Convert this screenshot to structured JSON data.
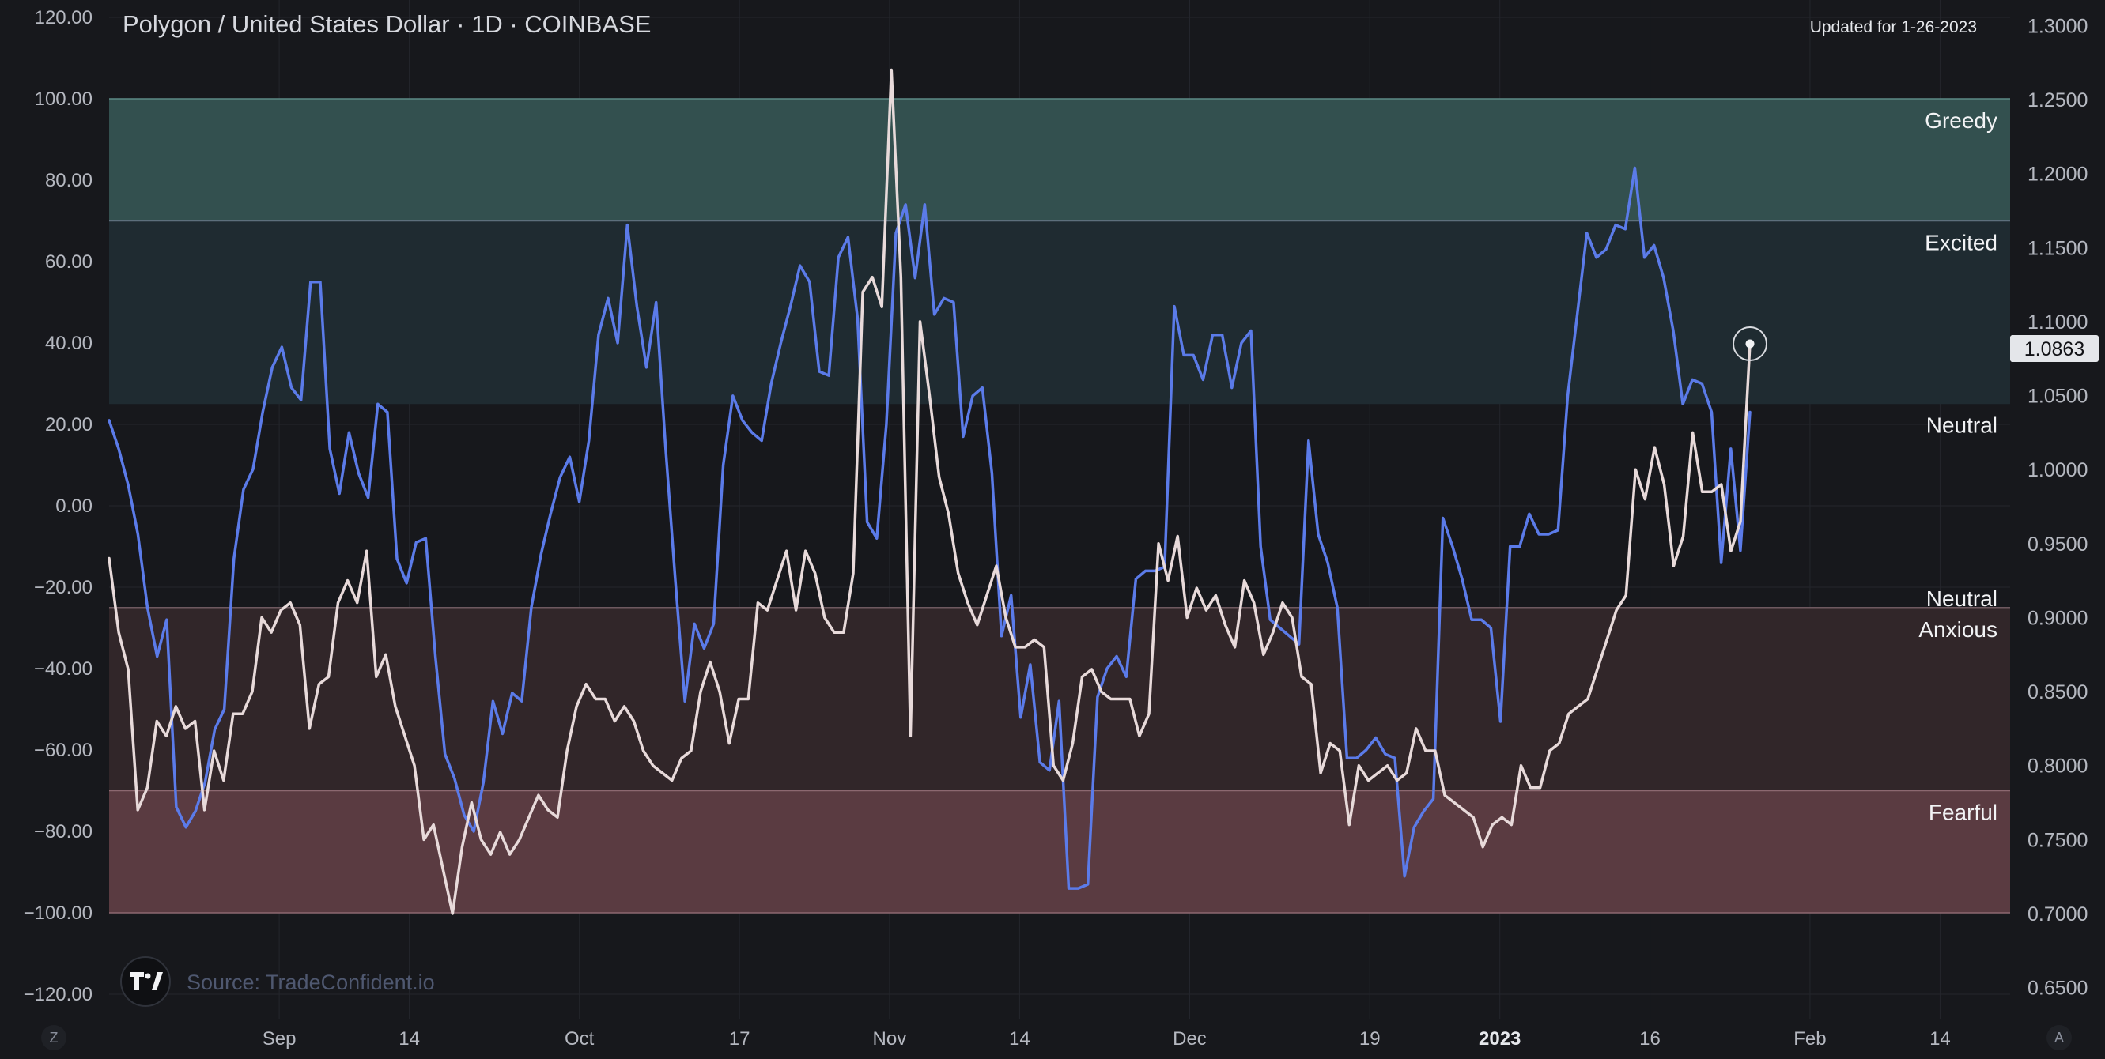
{
  "title": "Polygon / United States Dollar · 1D · COINBASE",
  "updated_text": "Updated for 1-26-2023",
  "source_text": "Source: TradeConfident.io",
  "logo_text": "TV",
  "corner_buttons": {
    "left": "Z",
    "right": "A"
  },
  "colors": {
    "background": "#17181c",
    "sentiment_line": "#5b7be9",
    "price_line": "#e8dada",
    "greedy_fill": "#33504f",
    "excited_fill": "#1f2b31",
    "anxious_fill": "#312629",
    "fearful_fill": "#5a3b41",
    "grid": "#24262c"
  },
  "chart_data": {
    "type": "line",
    "title": "Polygon / United States Dollar · 1D · COINBASE",
    "x_start": "2022-08-15",
    "x_end": "2023-01-26",
    "x_range": [
      "2022-08-15",
      "2023-02-21"
    ],
    "ylim_left": [
      -120,
      120
    ],
    "ylim_right": [
      0.65,
      1.3
    ],
    "y_left_ticks": [
      "120.00",
      "100.00",
      "80.00",
      "60.00",
      "40.00",
      "20.00",
      "0.00",
      "−20.00",
      "−40.00",
      "−60.00",
      "−80.00",
      "−100.00",
      "−120.00"
    ],
    "y_right_ticks": [
      "1.3000",
      "1.2500",
      "1.2000",
      "1.1500",
      "1.1000",
      "1.0500",
      "1.0000",
      "0.9500",
      "0.9000",
      "0.8500",
      "0.8000",
      "0.7500",
      "0.7000",
      "0.6500"
    ],
    "x_ticks": [
      {
        "label": "Sep",
        "date": "2022-09-01",
        "bold": false
      },
      {
        "label": "14",
        "date": "2022-09-14",
        "bold": false
      },
      {
        "label": "Oct",
        "date": "2022-10-01",
        "bold": false
      },
      {
        "label": "17",
        "date": "2022-10-17",
        "bold": false
      },
      {
        "label": "Nov",
        "date": "2022-11-01",
        "bold": false
      },
      {
        "label": "14",
        "date": "2022-11-14",
        "bold": false
      },
      {
        "label": "Dec",
        "date": "2022-12-01",
        "bold": false
      },
      {
        "label": "19",
        "date": "2022-12-19",
        "bold": false
      },
      {
        "label": "2023",
        "date": "2023-01-01",
        "bold": true
      },
      {
        "label": "16",
        "date": "2023-01-16",
        "bold": false
      },
      {
        "label": "Feb",
        "date": "2023-02-01",
        "bold": false
      },
      {
        "label": "14",
        "date": "2023-02-14",
        "bold": false
      }
    ],
    "zones": [
      {
        "label": "Greedy",
        "from": 70,
        "to": 100
      },
      {
        "label": "Excited",
        "from": 25,
        "to": 70
      },
      {
        "label": "Neutral",
        "from": 25,
        "to": 25
      },
      {
        "label": "Neutral",
        "from": -25,
        "to": -25
      },
      {
        "label": "Anxious",
        "from": -70,
        "to": -25
      },
      {
        "label": "Fearful",
        "from": -100,
        "to": -70
      }
    ],
    "last_price": "1.0863",
    "series": [
      {
        "axis": "left",
        "values": [
          21,
          14,
          5,
          -7,
          -25,
          -37,
          -28,
          -74,
          -79,
          -75,
          -68,
          -55,
          -50,
          -13,
          4,
          9,
          23,
          34,
          39,
          29,
          26,
          55,
          55,
          14,
          3,
          18,
          8,
          2,
          25,
          23,
          -13,
          -19,
          -9,
          -8,
          -37,
          -61,
          -67,
          -76,
          -80,
          -68,
          -48,
          -56,
          -46,
          -48,
          -25,
          -12,
          -2,
          7,
          12,
          1,
          16,
          42,
          51,
          40,
          69,
          49,
          34,
          50,
          14,
          -18,
          -48,
          -29,
          -35,
          -29,
          10,
          27,
          21,
          18,
          16,
          30,
          40,
          49,
          59,
          55,
          33,
          32,
          61,
          66,
          46,
          -4,
          -8,
          20,
          67,
          74,
          56,
          74,
          47,
          51,
          50,
          17,
          27,
          29,
          8,
          -32,
          -22,
          -52,
          -39,
          -63,
          -65,
          -48,
          -94,
          -94,
          -93,
          -47,
          -40,
          -37,
          -42,
          -18,
          -16,
          -16,
          -15,
          49,
          37,
          37,
          31,
          42,
          42,
          29,
          40,
          43,
          -10,
          -28,
          -30,
          -32,
          -34,
          16,
          -7,
          -14,
          -25,
          -62,
          -62,
          -60,
          -57,
          -61,
          -62,
          -91,
          -79,
          -75,
          -72,
          -3,
          -10,
          -18,
          -28,
          -28,
          -30,
          -53,
          -10,
          -10,
          -2,
          -7,
          -7,
          -6,
          27,
          47,
          67,
          61,
          63,
          69,
          68,
          83,
          61,
          64,
          56,
          43,
          25,
          31,
          30,
          23,
          -14,
          14,
          -11,
          23
        ],
        "values_note": ""
      },
      {
        "axis": "right",
        "values": [
          0.94,
          0.89,
          0.865,
          0.77,
          0.785,
          0.83,
          0.82,
          0.84,
          0.825,
          0.83,
          0.77,
          0.81,
          0.79,
          0.835,
          0.835,
          0.85,
          0.9,
          0.89,
          0.905,
          0.91,
          0.895,
          0.825,
          0.855,
          0.86,
          0.91,
          0.925,
          0.91,
          0.945,
          0.86,
          0.875,
          0.84,
          0.82,
          0.8,
          0.75,
          0.76,
          0.73,
          0.7,
          0.745,
          0.775,
          0.75,
          0.74,
          0.755,
          0.74,
          0.75,
          0.765,
          0.78,
          0.77,
          0.765,
          0.81,
          0.84,
          0.855,
          0.845,
          0.845,
          0.83,
          0.84,
          0.83,
          0.81,
          0.8,
          0.795,
          0.79,
          0.805,
          0.81,
          0.85,
          0.87,
          0.85,
          0.815,
          0.845,
          0.845,
          0.91,
          0.905,
          0.925,
          0.945,
          0.905,
          0.945,
          0.93,
          0.9,
          0.89,
          0.89,
          0.93,
          1.12,
          1.13,
          1.11,
          1.27,
          1.13,
          0.82,
          1.1,
          1.05,
          0.995,
          0.97,
          0.93,
          0.91,
          0.895,
          0.915,
          0.935,
          0.9,
          0.88,
          0.88,
          0.885,
          0.88,
          0.8,
          0.79,
          0.815,
          0.86,
          0.865,
          0.85,
          0.845,
          0.845,
          0.845,
          0.82,
          0.835,
          0.95,
          0.925,
          0.955,
          0.9,
          0.92,
          0.905,
          0.915,
          0.895,
          0.88,
          0.925,
          0.91,
          0.875,
          0.89,
          0.91,
          0.9,
          0.86,
          0.855,
          0.795,
          0.815,
          0.81,
          0.76,
          0.8,
          0.79,
          0.795,
          0.8,
          0.79,
          0.795,
          0.825,
          0.81,
          0.81,
          0.78,
          0.775,
          0.77,
          0.765,
          0.745,
          0.76,
          0.765,
          0.76,
          0.8,
          0.785,
          0.785,
          0.81,
          0.815,
          0.835,
          0.84,
          0.845,
          0.865,
          0.885,
          0.905,
          0.915,
          1.0,
          0.98,
          1.015,
          0.99,
          0.935,
          0.955,
          1.025,
          0.985,
          0.985,
          0.99,
          0.945,
          0.965,
          1.085
        ]
      }
    ]
  }
}
